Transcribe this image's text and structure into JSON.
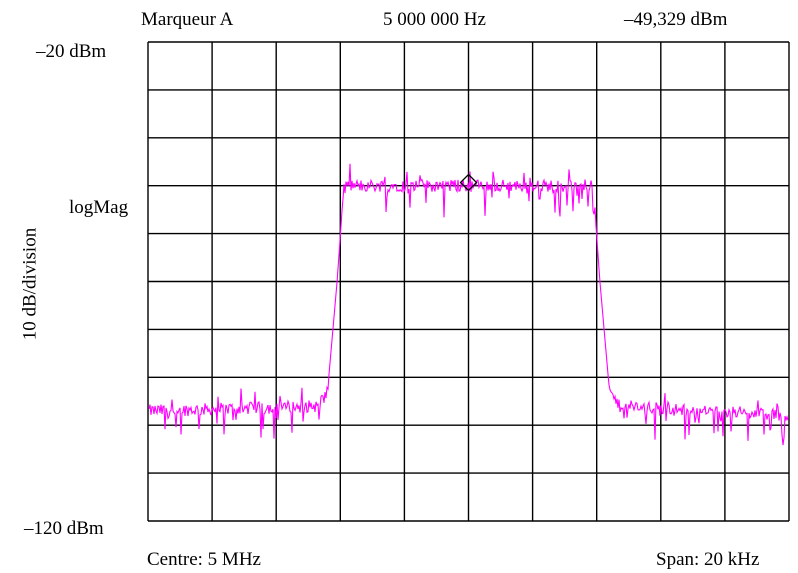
{
  "header": {
    "marker_label": "Marqueur A",
    "marker_frequency": "5 000 000 Hz",
    "marker_level": "–49,329 dBm"
  },
  "axis": {
    "top_ref": "–20 dBm",
    "bottom_ref": "–120 dBm",
    "scale_label": "logMag",
    "ylabel": "10 dB/division",
    "center_label": "Centre: 5 MHz",
    "span_label": "Span: 20 kHz"
  },
  "chart_data": {
    "type": "line",
    "title": "",
    "xlabel": "",
    "ylabel": "10 dB/division",
    "x_center_hz": 5000000,
    "x_span_hz": 20000,
    "xlim_hz": [
      4990000,
      5010000
    ],
    "ylim_dbm": [
      -120,
      -20
    ],
    "x_divisions": 10,
    "y_divisions": 10,
    "grid": true,
    "series": [
      {
        "trace_color": "#ff00ff",
        "points": [
          [
            4990000,
            -97
          ],
          [
            4993000,
            -96.5
          ],
          [
            4995300,
            -96
          ],
          [
            4995600,
            -93
          ],
          [
            4995900,
            -70
          ],
          [
            4996100,
            -51
          ],
          [
            4996200,
            -50
          ],
          [
            5000000,
            -50
          ],
          [
            5003800,
            -50
          ],
          [
            5003900,
            -51
          ],
          [
            5004100,
            -70
          ],
          [
            5004400,
            -93
          ],
          [
            5004700,
            -96
          ],
          [
            5007000,
            -97
          ],
          [
            5010000,
            -98
          ]
        ]
      }
    ],
    "marker": {
      "name": "Marqueur A",
      "frequency_hz": 5000000,
      "level_dbm": -49.329,
      "marker_color": "#000000"
    }
  }
}
